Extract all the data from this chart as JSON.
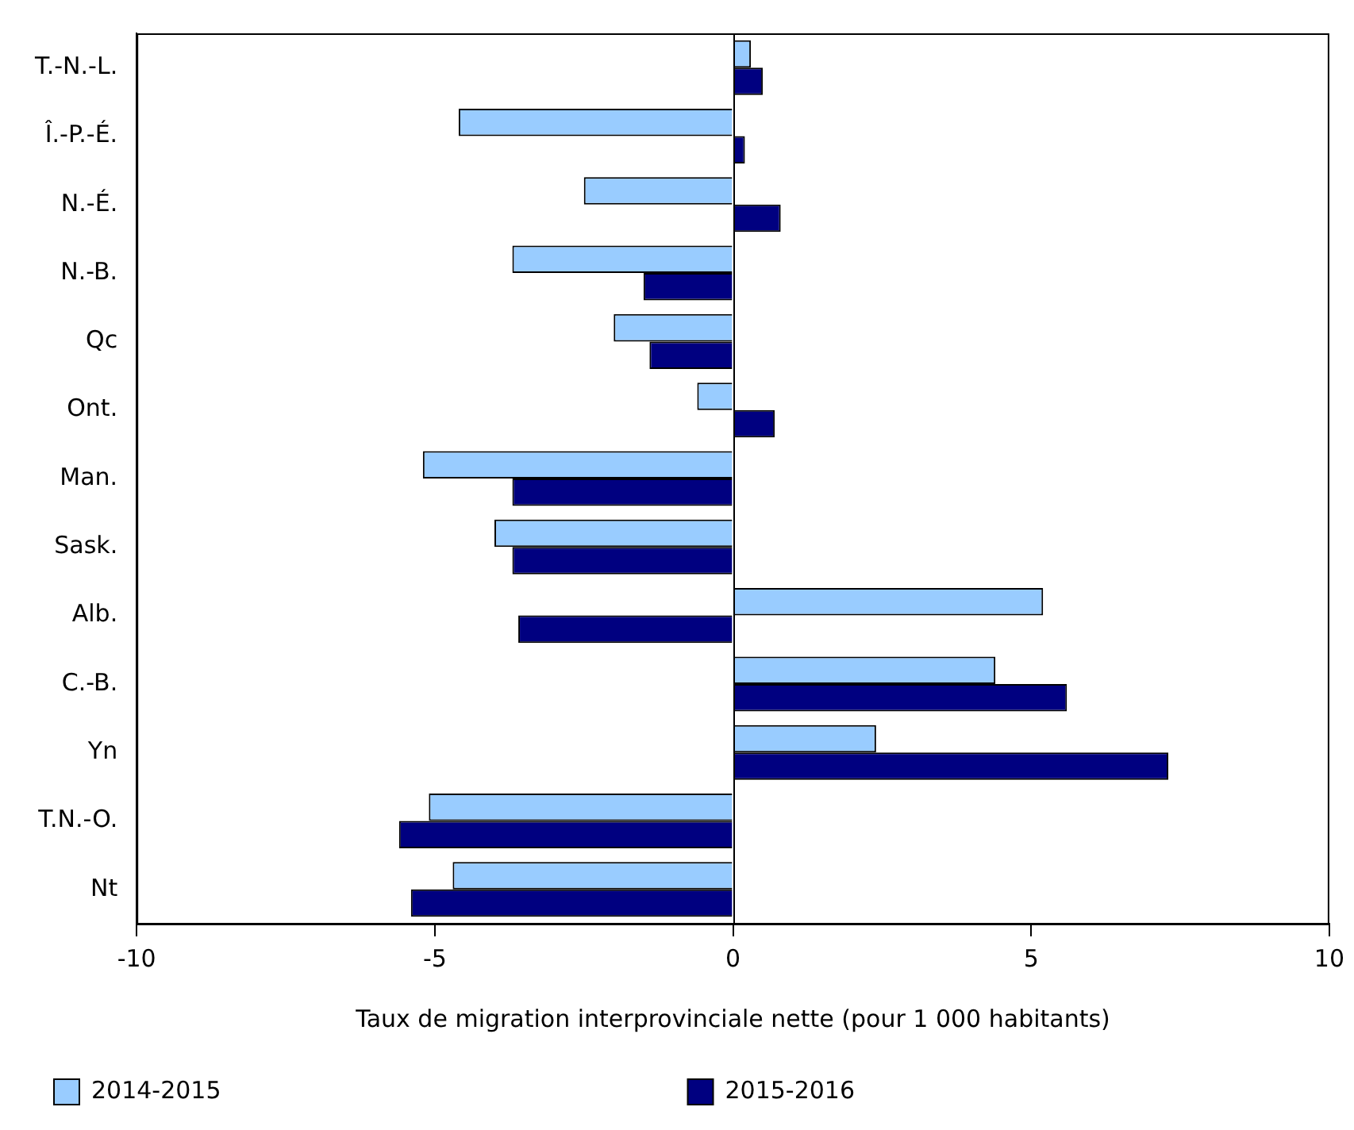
{
  "chart_data": {
    "type": "bar",
    "orientation": "horizontal",
    "xlabel": "Taux de migration interprovinciale nette (pour 1 000 habitants)",
    "categories": [
      "T.-N.-L.",
      "Î.-P.-É.",
      "N.-É.",
      "N.-B.",
      "Qc",
      "Ont.",
      "Man.",
      "Sask.",
      "Alb.",
      "C.-B.",
      "Yn",
      "T.N.-O.",
      "Nt"
    ],
    "series": [
      {
        "name": "2014-2015",
        "color": "#99ccff",
        "values": [
          0.3,
          -4.6,
          -2.5,
          -3.7,
          -2.0,
          -0.6,
          -5.2,
          -4.0,
          5.2,
          4.4,
          2.4,
          -5.1,
          -4.7
        ]
      },
      {
        "name": "2015-2016",
        "color": "#000080",
        "values": [
          0.5,
          0.2,
          0.8,
          -1.5,
          -1.4,
          0.7,
          -3.7,
          -3.7,
          -3.6,
          5.6,
          7.3,
          -5.6,
          -5.4
        ]
      }
    ],
    "xlim": [
      -10,
      10
    ],
    "xticks": [
      -10,
      -5,
      0,
      5,
      10
    ],
    "ref_lines": [
      {
        "axis": "x",
        "value": 0,
        "color": "#000000"
      }
    ],
    "legend": "bottom"
  }
}
